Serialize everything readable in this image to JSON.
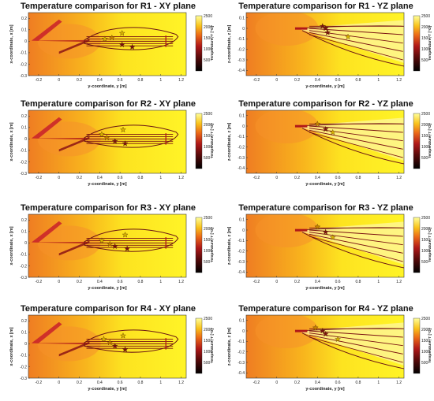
{
  "figure": {
    "panels": [
      {
        "title": "Temperature comparison for R1 - XY plane",
        "plane": "XY",
        "xlabel": "y-coordinate, y [m]",
        "ylabel": "x-coordinate, x [m]",
        "xticks": [
          "-0.2",
          "0",
          "0.2",
          "0.4",
          "0.6",
          "0.8",
          "1",
          "1.2"
        ],
        "yticks": [
          "0.2",
          "0.1",
          "0",
          "-0.1",
          "-0.2",
          "-0.3"
        ],
        "cbar_label": "Temperature, T [°C]",
        "cbar_ticks": [
          "2500",
          "2000",
          "1500",
          "1000",
          "500"
        ]
      },
      {
        "title": "Temperature comparison for R1 - YZ plane",
        "plane": "YZ",
        "xlabel": "y-coordinate, y [m]",
        "ylabel": "z-coordinate, z [m]",
        "xticks": [
          "-0.2",
          "0",
          "0.2",
          "0.4",
          "0.6",
          "0.8",
          "1",
          "1.2"
        ],
        "yticks": [
          "0.1",
          "0",
          "-0.1",
          "-0.2",
          "-0.3",
          "-0.4"
        ],
        "cbar_label": "Temperature, T [°C]",
        "cbar_ticks": [
          "2500",
          "2000",
          "1500",
          "1000",
          "500"
        ]
      },
      {
        "title": "Temperature comparison for R2 - XY plane",
        "plane": "XY",
        "xlabel": "y-coordinate, y [m]",
        "ylabel": "x-coordinate, x [m]",
        "xticks": [
          "-0.2",
          "0",
          "0.2",
          "0.4",
          "0.6",
          "0.8",
          "1",
          "1.2"
        ],
        "yticks": [
          "0.2",
          "0.1",
          "0",
          "-0.1",
          "-0.2",
          "-0.3"
        ],
        "cbar_label": "Temperature, T [°C]",
        "cbar_ticks": [
          "2500",
          "2000",
          "1500",
          "1000",
          "500"
        ]
      },
      {
        "title": "Temperature comparison for R2 - YZ plane",
        "plane": "YZ",
        "xlabel": "y-coordinate, y [m]",
        "ylabel": "z-coordinate, z [m]",
        "xticks": [
          "-0.2",
          "0",
          "0.2",
          "0.4",
          "0.6",
          "0.8",
          "1",
          "1.2"
        ],
        "yticks": [
          "0.1",
          "0",
          "-0.1",
          "-0.2",
          "-0.3",
          "-0.4"
        ],
        "cbar_label": "Temperature, T [°C]",
        "cbar_ticks": [
          "2500",
          "2000",
          "1500",
          "1000",
          "500"
        ]
      },
      {
        "title": "Temperature comparison for R3 - XY plane",
        "plane": "XY",
        "xlabel": "y-coordinate, y [m]",
        "ylabel": "x-coordinate, x [m]",
        "xticks": [
          "-0.2",
          "0",
          "0.2",
          "0.4",
          "0.6",
          "0.8",
          "1",
          "1.2"
        ],
        "yticks": [
          "0.2",
          "0.1",
          "0",
          "-0.1",
          "-0.2",
          "-0.3"
        ],
        "cbar_label": "Temperature, T [°C]",
        "cbar_ticks": [
          "2500",
          "2000",
          "1500",
          "1000",
          "500"
        ]
      },
      {
        "title": "Temperature comparison for R3 - YZ plane",
        "plane": "YZ",
        "xlabel": "y-coordinate, y [m]",
        "ylabel": "z-coordinate, z [m]",
        "xticks": [
          "-0.2",
          "0",
          "0.2",
          "0.4",
          "0.6",
          "0.8",
          "1",
          "1.2"
        ],
        "yticks": [
          "0.1",
          "0",
          "-0.1",
          "-0.2",
          "-0.3",
          "-0.4"
        ],
        "cbar_label": "Temperature, T [°C]",
        "cbar_ticks": [
          "2500",
          "2000",
          "1500",
          "1000",
          "500"
        ]
      },
      {
        "title": "Temperature comparison for R4 - XY plane",
        "plane": "XY",
        "xlabel": "y-coordinate, y [m]",
        "ylabel": "x-coordinate, x [m]",
        "xticks": [
          "-0.2",
          "0",
          "0.2",
          "0.4",
          "0.6",
          "0.8",
          "1",
          "1.2"
        ],
        "yticks": [
          "0.2",
          "0.1",
          "0",
          "-0.1",
          "-0.2",
          "-0.3"
        ],
        "cbar_label": "Temperature, T [°C]",
        "cbar_ticks": [
          "2500",
          "2000",
          "1500",
          "1000",
          "500"
        ]
      },
      {
        "title": "Temperature comparison for R4 - YZ plane",
        "plane": "YZ",
        "xlabel": "y-coordinate, y [m]",
        "ylabel": "z-coordinate, z [m]",
        "xticks": [
          "-0.2",
          "0",
          "0.2",
          "0.4",
          "0.6",
          "0.8",
          "1",
          "1.2"
        ],
        "yticks": [
          "0.1",
          "0",
          "-0.1",
          "-0.2",
          "-0.3",
          "-0.4"
        ],
        "cbar_label": "Temperature, T [°C]",
        "cbar_ticks": [
          "2500",
          "2000",
          "1500",
          "1000",
          "500"
        ]
      }
    ]
  },
  "chart_data": [
    {
      "type": "heatmap",
      "title": "Temperature comparison for R1 - XY plane",
      "xlabel": "y-coordinate, y [m]",
      "ylabel": "x-coordinate, x [m]",
      "xlim": [
        -0.3,
        1.25
      ],
      "ylim": [
        -0.3,
        0.25
      ],
      "colorbar": {
        "label": "Temperature, T [°C]",
        "range": [
          0,
          2500
        ],
        "ticks": [
          500,
          1000,
          1500,
          2000,
          2500
        ]
      },
      "markers": [
        {
          "y": 0.45,
          "coord": 0.02,
          "color": "#d9b400"
        },
        {
          "y": 0.52,
          "coord": 0.03,
          "color": "#c98400"
        },
        {
          "y": 0.62,
          "coord": 0.07,
          "color": "#d9b400"
        },
        {
          "y": 0.62,
          "coord": -0.03,
          "color": "#7a1010"
        },
        {
          "y": 0.72,
          "coord": -0.05,
          "color": "#7a1010"
        }
      ]
    },
    {
      "type": "heatmap",
      "title": "Temperature comparison for R1 - YZ plane",
      "xlabel": "y-coordinate, y [m]",
      "ylabel": "z-coordinate, z [m]",
      "xlim": [
        -0.3,
        1.25
      ],
      "ylim": [
        -0.45,
        0.15
      ],
      "colorbar": {
        "label": "Temperature, T [°C]",
        "range": [
          0,
          2500
        ],
        "ticks": [
          500,
          1000,
          1500,
          2000,
          2500
        ]
      },
      "markers": [
        {
          "y": 0.45,
          "coord": 0.02,
          "color": "#7a1010"
        },
        {
          "y": 0.48,
          "coord": 0.0,
          "color": "#7a1010"
        },
        {
          "y": 0.5,
          "coord": -0.04,
          "color": "#7a1010"
        },
        {
          "y": 0.7,
          "coord": -0.08,
          "color": "#d9b400"
        }
      ]
    },
    {
      "type": "heatmap",
      "title": "Temperature comparison for R2 - XY plane",
      "xlabel": "y-coordinate, y [m]",
      "ylabel": "x-coordinate, x [m]",
      "xlim": [
        -0.3,
        1.25
      ],
      "ylim": [
        -0.3,
        0.25
      ],
      "colorbar": {
        "label": "Temperature, T [°C]",
        "range": [
          0,
          2500
        ],
        "ticks": [
          500,
          1000,
          1500,
          2000,
          2500
        ]
      },
      "markers": [
        {
          "y": 0.42,
          "coord": 0.04,
          "color": "#d9b400"
        },
        {
          "y": 0.47,
          "coord": 0.01,
          "color": "#c98400"
        },
        {
          "y": 0.55,
          "coord": -0.02,
          "color": "#7a1010"
        },
        {
          "y": 0.63,
          "coord": 0.08,
          "color": "#d9b400"
        },
        {
          "y": 0.65,
          "coord": -0.04,
          "color": "#7a1010"
        }
      ]
    },
    {
      "type": "heatmap",
      "title": "Temperature comparison for R2 - YZ plane",
      "xlabel": "y-coordinate, y [m]",
      "ylabel": "z-coordinate, z [m]",
      "xlim": [
        -0.3,
        1.25
      ],
      "ylim": [
        -0.45,
        0.15
      ],
      "colorbar": {
        "label": "Temperature, T [°C]",
        "range": [
          0,
          2500
        ],
        "ticks": [
          500,
          1000,
          1500,
          2000,
          2500
        ]
      },
      "markers": [
        {
          "y": 0.4,
          "coord": 0.02,
          "color": "#c98400"
        },
        {
          "y": 0.48,
          "coord": -0.03,
          "color": "#7a1010"
        },
        {
          "y": 0.55,
          "coord": -0.06,
          "color": "#d9b400"
        }
      ]
    },
    {
      "type": "heatmap",
      "title": "Temperature comparison for R3 - XY plane",
      "xlabel": "y-coordinate, y [m]",
      "ylabel": "x-coordinate, x [m]",
      "xlim": [
        -0.3,
        1.25
      ],
      "ylim": [
        -0.3,
        0.25
      ],
      "colorbar": {
        "label": "Temperature, T [°C]",
        "range": [
          0,
          2500
        ],
        "ticks": [
          500,
          1000,
          1500,
          2000,
          2500
        ]
      },
      "markers": [
        {
          "y": 0.42,
          "coord": 0.02,
          "color": "#d9b400"
        },
        {
          "y": 0.5,
          "coord": -0.01,
          "color": "#c98400"
        },
        {
          "y": 0.55,
          "coord": -0.03,
          "color": "#7a1010"
        },
        {
          "y": 0.65,
          "coord": 0.07,
          "color": "#d9b400"
        },
        {
          "y": 0.67,
          "coord": -0.05,
          "color": "#7a1010"
        }
      ]
    },
    {
      "type": "heatmap",
      "title": "Temperature comparison for R3 - YZ plane",
      "xlabel": "y-coordinate, y [m]",
      "ylabel": "z-coordinate, z [m]",
      "xlim": [
        -0.3,
        1.25
      ],
      "ylim": [
        -0.45,
        0.15
      ],
      "colorbar": {
        "label": "Temperature, T [°C]",
        "range": [
          0,
          2500
        ],
        "ticks": [
          500,
          1000,
          1500,
          2000,
          2500
        ]
      },
      "markers": [
        {
          "y": 0.4,
          "coord": 0.03,
          "color": "#c98400"
        },
        {
          "y": 0.48,
          "coord": -0.02,
          "color": "#7a1010"
        },
        {
          "y": 0.55,
          "coord": -0.07,
          "color": "#d9b400"
        }
      ]
    },
    {
      "type": "heatmap",
      "title": "Temperature comparison for R4 - XY plane",
      "xlabel": "y-coordinate, y [m]",
      "ylabel": "x-coordinate, x [m]",
      "xlim": [
        -0.3,
        1.25
      ],
      "ylim": [
        -0.3,
        0.25
      ],
      "colorbar": {
        "label": "Temperature, T [°C]",
        "range": [
          0,
          2500
        ],
        "ticks": [
          500,
          1000,
          1500,
          2000,
          2500
        ]
      },
      "markers": [
        {
          "y": 0.44,
          "coord": 0.04,
          "color": "#d9b400"
        },
        {
          "y": 0.5,
          "coord": 0.01,
          "color": "#c98400"
        },
        {
          "y": 0.55,
          "coord": -0.02,
          "color": "#7a1010"
        },
        {
          "y": 0.63,
          "coord": 0.07,
          "color": "#d9b400"
        },
        {
          "y": 0.65,
          "coord": -0.05,
          "color": "#7a1010"
        }
      ]
    },
    {
      "type": "heatmap",
      "title": "Temperature comparison for R4 - YZ plane",
      "xlabel": "y-coordinate, y [m]",
      "ylabel": "z-coordinate, z [m]",
      "xlim": [
        -0.3,
        1.25
      ],
      "ylim": [
        -0.45,
        0.15
      ],
      "colorbar": {
        "label": "Temperature, T [°C]",
        "range": [
          0,
          2500
        ],
        "ticks": [
          500,
          1000,
          1500,
          2000,
          2500
        ]
      },
      "markers": [
        {
          "y": 0.38,
          "coord": 0.03,
          "color": "#c98400"
        },
        {
          "y": 0.45,
          "coord": 0.0,
          "color": "#7a1010"
        },
        {
          "y": 0.48,
          "coord": -0.03,
          "color": "#7a1010"
        },
        {
          "y": 0.6,
          "coord": -0.08,
          "color": "#d9b400"
        }
      ]
    }
  ]
}
